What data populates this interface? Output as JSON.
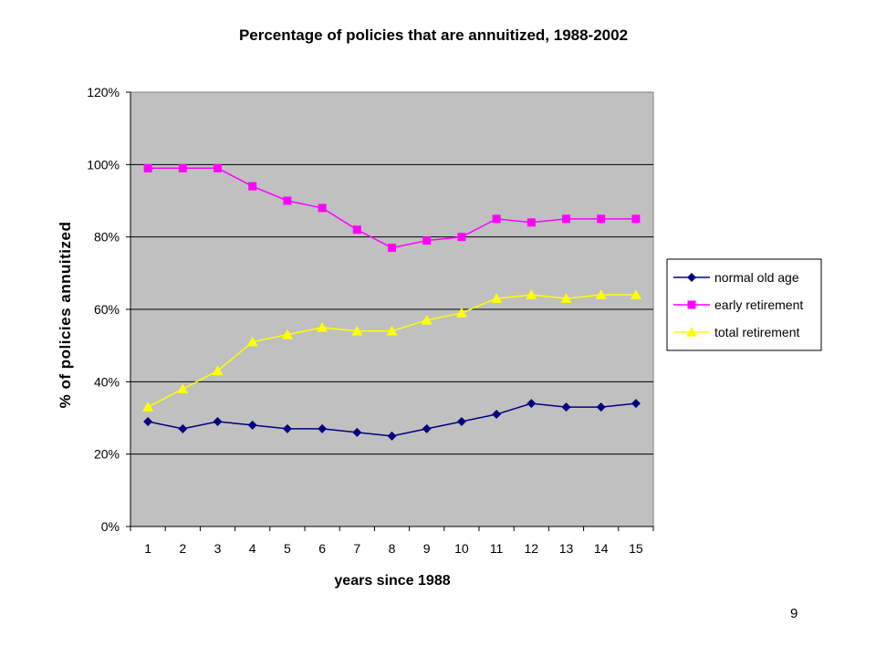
{
  "page": {
    "number": "9"
  },
  "chart_data": {
    "type": "line",
    "title": "Percentage of policies that are annuitized, 1988-2002",
    "xlabel": "years since 1988",
    "ylabel": "% of policies annuitized",
    "categories": [
      "1",
      "2",
      "3",
      "4",
      "5",
      "6",
      "7",
      "8",
      "9",
      "10",
      "11",
      "12",
      "13",
      "14",
      "15"
    ],
    "ylim": [
      0,
      120
    ],
    "yticks": [
      "0%",
      "20%",
      "40%",
      "60%",
      "80%",
      "100%",
      "120%"
    ],
    "ytick_values": [
      0,
      20,
      40,
      60,
      80,
      100,
      120
    ],
    "grid": true,
    "plot_background": "#c0c0c0",
    "legend_position": "right",
    "series": [
      {
        "name": "normal old age",
        "color": "#000080",
        "marker": "diamond",
        "values": [
          29,
          27,
          29,
          28,
          27,
          27,
          26,
          25,
          27,
          29,
          31,
          34,
          33,
          33,
          34
        ]
      },
      {
        "name": "early retirement",
        "color": "#ff00ff",
        "marker": "square",
        "values": [
          99,
          99,
          99,
          94,
          90,
          88,
          82,
          77,
          79,
          80,
          85,
          84,
          85,
          85,
          85
        ]
      },
      {
        "name": "total retirement",
        "color": "#ffff00",
        "marker": "triangle",
        "values": [
          33,
          38,
          43,
          51,
          53,
          55,
          54,
          54,
          57,
          59,
          63,
          64,
          63,
          64,
          64
        ]
      }
    ]
  }
}
